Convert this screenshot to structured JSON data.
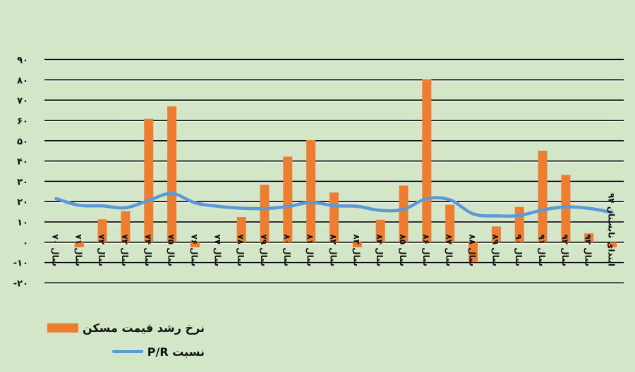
{
  "chart_data": {
    "type": "bar",
    "title": "",
    "xlabel": "",
    "ylabel": "",
    "ylim": [
      -20,
      90
    ],
    "yticks": [
      -20,
      -10,
      0,
      10,
      20,
      30,
      40,
      50,
      60,
      70,
      80,
      90
    ],
    "ytick_labels": [
      "-۲۰",
      "-۱۰",
      "۰",
      "۱۰",
      "۲۰",
      "۳۰",
      "۴۰",
      "۵۰",
      "۶۰",
      "۷۰",
      "۸۰",
      "۹۰"
    ],
    "grid": true,
    "legend_position": "bottom-left",
    "categories": [
      "سال ۷۰",
      "سال ۷۱",
      "سال ۷۲",
      "سال ۷۳",
      "سال ۷۴",
      "سال ۷۵",
      "سال ۷۶",
      "سال ۷۷",
      "سال ۷۸",
      "سال ۷۹",
      "سال ۸۰",
      "سال ۸۱",
      "سال ۸۲",
      "سال ۸۳",
      "سال ۸۴",
      "سال ۸۵",
      "سال ۸۶",
      "سال ۸۷",
      "سال ۸۸",
      "سال ۸۹",
      "سال ۹۰",
      "سال ۹۱",
      "سال ۹۲",
      "سال ۹۳",
      "ابتدای تابستان ۹۴"
    ],
    "series": [
      {
        "name": "نرخ رشد قیمت مسکن",
        "type": "bar",
        "color": "#ed7d31",
        "values": [
          0,
          -2.5,
          11.3,
          15.3,
          60.8,
          66.9,
          -2.5,
          0,
          12.4,
          28.3,
          42.2,
          50.3,
          24.5,
          -2.5,
          11.1,
          27.9,
          80.3,
          18.5,
          -9.8,
          7.8,
          17.4,
          45.1,
          33.2,
          4.4,
          -2.5
        ]
      },
      {
        "name": "نسبت P/R",
        "type": "line",
        "color": "#5b9bd5",
        "values": [
          21.5,
          18.2,
          17.9,
          17.0,
          20.6,
          24.0,
          19.4,
          17.7,
          16.8,
          16.6,
          17.6,
          19.6,
          18.0,
          17.7,
          15.7,
          16.3,
          21.4,
          20.9,
          14.0,
          13.0,
          13.2,
          15.9,
          17.4,
          16.7,
          14.7
        ]
      }
    ]
  },
  "legend": {
    "items": [
      {
        "label": "نرخ رشد قیمت مسکن",
        "kind": "bar"
      },
      {
        "label": "نسبت P/R",
        "kind": "line"
      }
    ]
  },
  "colors": {
    "background": "#d3e6c8",
    "bar": "#ed7d31",
    "line": "#5b9bd5",
    "grid": "#000000"
  }
}
